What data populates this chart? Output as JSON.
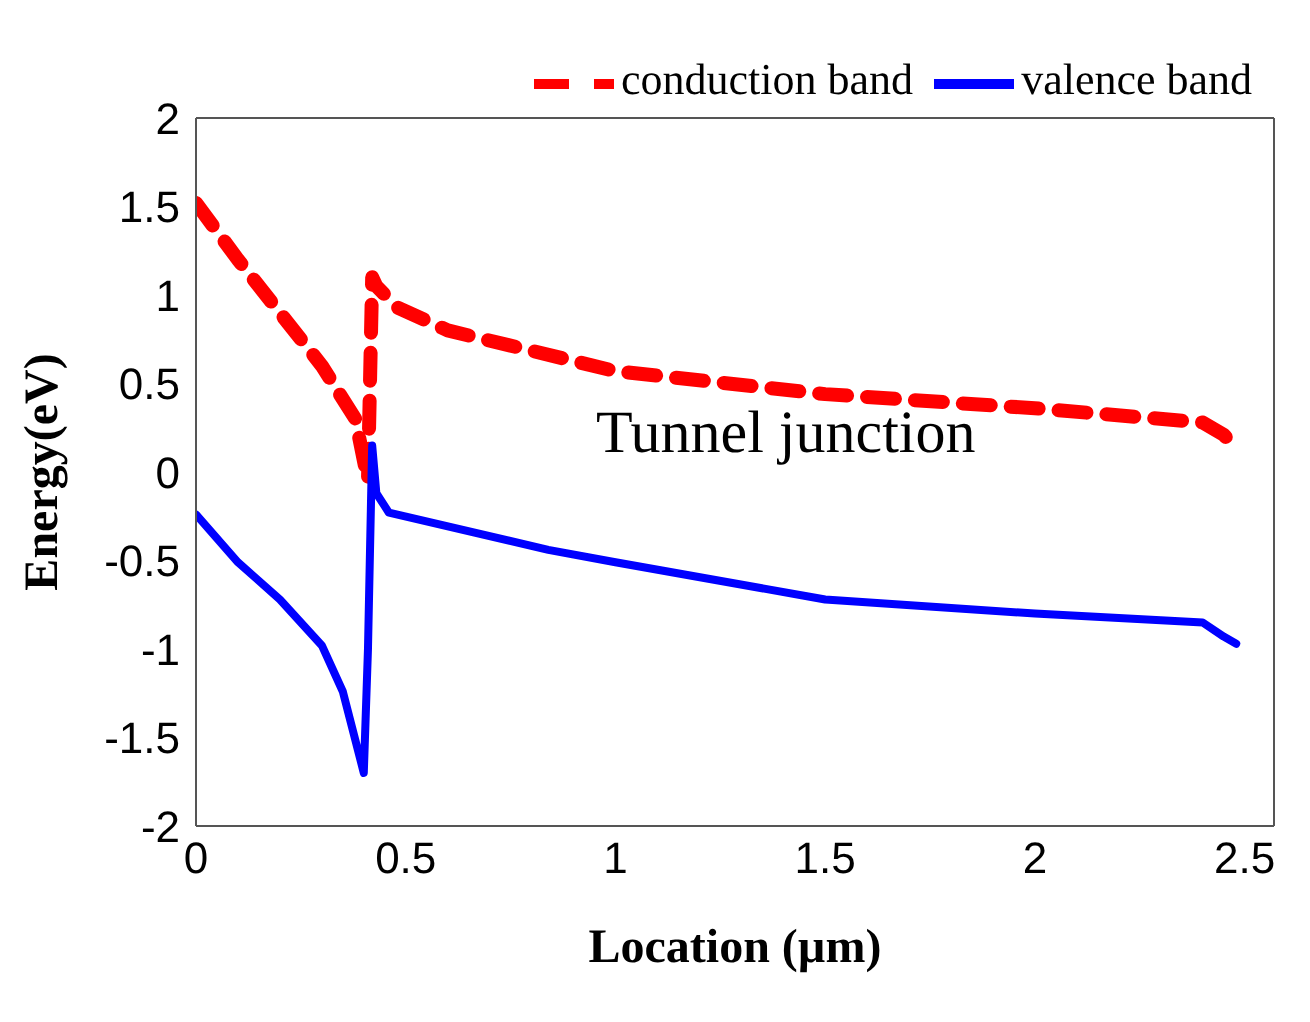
{
  "chart_data": {
    "type": "line",
    "xlabel": "Location (µm)",
    "ylabel": "Energy(eV)",
    "xlim": [
      0,
      2.57
    ],
    "xticks": [
      0,
      0.5,
      1,
      1.5,
      2,
      2.5
    ],
    "ylim": [
      -2,
      2
    ],
    "yticks": [
      -2,
      -1.5,
      -1,
      -0.5,
      0,
      0.5,
      1,
      1.5,
      2
    ],
    "grid": false,
    "legend": "top",
    "marker": "none",
    "annotations": [
      "Tunnel junction"
    ],
    "series": [
      {
        "name": "conduction band",
        "color": "#ff0000",
        "line_style": "dashed",
        "x": [
          0,
          0.1,
          0.2,
          0.3,
          0.38,
          0.41,
          0.42,
          0.43,
          0.48,
          0.6,
          1,
          1.5,
          2,
          2.4,
          2.45,
          2.48
        ],
        "values": [
          1.52,
          1.2,
          0.9,
          0.6,
          0.3,
          -0.05,
          1.1,
          1.05,
          0.93,
          0.8,
          0.57,
          0.44,
          0.36,
          0.28,
          0.21,
          0.14
        ]
      },
      {
        "name": "valence band",
        "color": "#0000ff",
        "line_style": "solid",
        "x": [
          0,
          0.1,
          0.2,
          0.3,
          0.35,
          0.4,
          0.41,
          0.42,
          0.43,
          0.46,
          0.84,
          1,
          1.5,
          2,
          2.4,
          2.45,
          2.48
        ],
        "values": [
          -0.24,
          -0.51,
          -0.72,
          -0.98,
          -1.24,
          -1.7,
          -1.0,
          0.15,
          -0.12,
          -0.23,
          -0.44,
          -0.51,
          -0.72,
          -0.8,
          -0.85,
          -0.93,
          -0.97
        ]
      }
    ]
  }
}
